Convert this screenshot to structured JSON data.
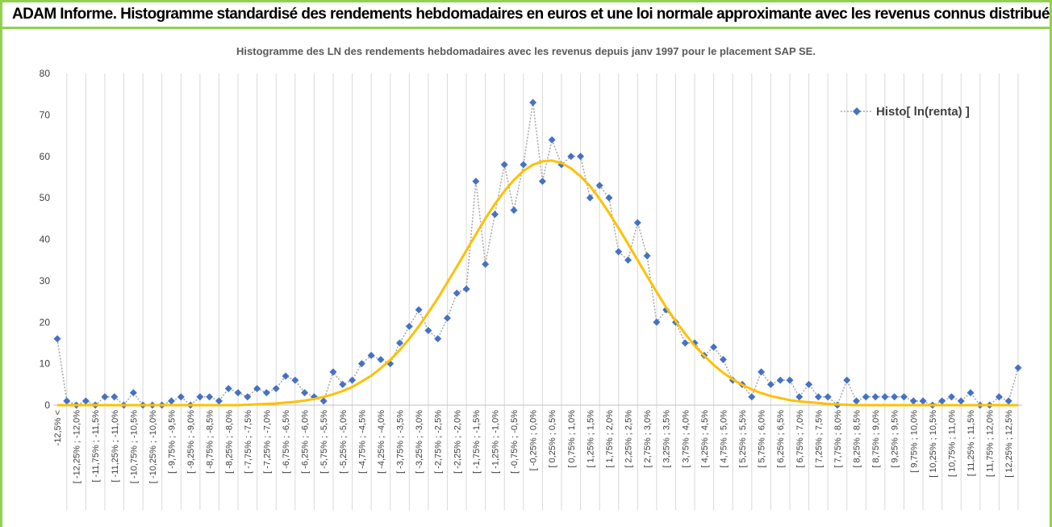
{
  "header": {
    "title": "ADAM Informe. Histogramme standardisé des rendements hebdomadaires en euros et une loi normale approximante avec les revenus connus distribués"
  },
  "chart_data": {
    "type": "line",
    "title": "Histogramme des LN des rendements hebdomadaires avec les revenus depuis janv 1997 pour le placement SAP SE.",
    "categories": [
      "-12,5% <",
      null,
      "[ -12,25% ; -12,0%",
      null,
      "[ -11,75% ; -11,5%",
      null,
      "[ -11,25% ; -11,0%",
      null,
      "[ -10,75% ; -10,5%",
      null,
      "[ -10,25% ; -10,0%",
      null,
      "[ -9,75% ; -9,5%",
      null,
      "[ -9,25% ; -9,0%",
      null,
      "[ -8,75% ; -8,5%",
      null,
      "[ -8,25% ; -8,0%",
      null,
      "[ -7,75% ; -7,5%",
      null,
      "[ -7,25% ; -7,0%",
      null,
      "[ -6,75% ; -6,5%",
      null,
      "[ -6,25% ; -6,0%",
      null,
      "[ -5,75% ; -5,5%",
      null,
      "[ -5,25% ; -5,0%",
      null,
      "[ -4,75% ; -4,5%",
      null,
      "[ -4,25% ; -4,0%",
      null,
      "[ -3,75% ; -3,5%",
      null,
      "[ -3,25% ; -3,0%",
      null,
      "[ -2,75% ; -2,5%",
      null,
      "[ -2,25% ; -2,0%",
      null,
      "[ -1,75% ; -1,5%",
      null,
      "[ -1,25% ; -1,0%",
      null,
      "[ -0,75% ; -0,5%",
      null,
      "[ -0,25% ; 0,0%",
      null,
      "[ 0,25% ; 0,5%",
      null,
      "[ 0,75% ; 1,0%",
      null,
      "[ 1,25% ; 1,5%",
      null,
      "[ 1,75% ; 2,0%",
      null,
      "[ 2,25% ; 2,5%",
      null,
      "[ 2,75% ; 3,0%",
      null,
      "[ 3,25% ; 3,5%",
      null,
      "[ 3,75% ; 4,0%",
      null,
      "[ 4,25% ; 4,5%",
      null,
      "[ 4,75% ; 5,0%",
      null,
      "[ 5,25% ; 5,5%",
      null,
      "[ 5,75% ; 6,0%",
      null,
      "[ 6,25% ; 6,5%",
      null,
      "[ 6,75% ; 7,0%",
      null,
      "[ 7,25% ; 7,5%",
      null,
      "[ 7,75% ; 8,0%",
      null,
      "[ 8,25% ; 8,5%",
      null,
      "[ 8,75% ; 9,0%",
      null,
      "[ 9,25% ; 9,5%",
      null,
      "[ 9,75% ; 10,0%",
      null,
      "[ 10,25% ; 10,5%",
      null,
      "[ 10,75% ; 11,0%",
      null,
      "[ 11,25% ; 11,5%",
      null,
      "[ 11,75% ; 12,0%",
      null,
      "[ 12,25% ; 12,5%",
      null
    ],
    "series": [
      {
        "name": "Histo[ ln(renta) ]",
        "color": "#4472c4",
        "line_color": "#a5a5a5",
        "values": [
          16,
          1,
          0,
          1,
          0,
          2,
          2,
          0,
          3,
          0,
          0,
          0,
          1,
          2,
          0,
          2,
          2,
          1,
          4,
          3,
          2,
          4,
          3,
          4,
          7,
          6,
          3,
          2,
          1,
          8,
          5,
          6,
          10,
          12,
          11,
          10,
          15,
          19,
          23,
          18,
          16,
          21,
          27,
          28,
          54,
          34,
          46,
          58,
          47,
          58,
          73,
          54,
          64,
          58,
          60,
          60,
          50,
          53,
          50,
          37,
          35,
          44,
          36,
          20,
          23,
          20,
          15,
          15,
          12,
          14,
          11,
          6,
          5,
          2,
          8,
          5,
          6,
          6,
          2,
          5,
          2,
          2,
          0,
          6,
          1,
          2,
          2,
          2,
          2,
          2,
          1,
          1,
          0,
          1,
          2,
          1,
          3,
          0,
          0,
          2,
          1,
          9
        ]
      },
      {
        "color": "#ffc000",
        "values": [
          0,
          0,
          0,
          0,
          0,
          0,
          0,
          0,
          0,
          0,
          0,
          0,
          0,
          0,
          0,
          0,
          0,
          0,
          0,
          0,
          0.1,
          0.2,
          0.3,
          0.4,
          0.6,
          0.8,
          1.1,
          1.5,
          2.0,
          2.6,
          3.4,
          4.4,
          5.7,
          7.1,
          8.9,
          10.9,
          13.3,
          16.0,
          19.0,
          22.3,
          25.8,
          29.6,
          33.4,
          37.3,
          41.2,
          45.0,
          48.5,
          51.6,
          54.3,
          56.5,
          58.0,
          58.8,
          59.0,
          58.4,
          57.1,
          55.2,
          52.8,
          49.8,
          46.4,
          42.7,
          38.9,
          35.0,
          31.1,
          27.3,
          23.6,
          20.3,
          17.2,
          14.3,
          11.9,
          9.7,
          7.8,
          6.2,
          4.9,
          3.8,
          2.9,
          2.2,
          1.7,
          1.2,
          0.9,
          0.7,
          0.5,
          0.3,
          0.2,
          0.1,
          0,
          0,
          0,
          0,
          0,
          0,
          0,
          0,
          0,
          0,
          0,
          0,
          0,
          0,
          0,
          0,
          0,
          0
        ]
      }
    ],
    "ylim": [
      0,
      80
    ],
    "yticks": [
      0,
      10,
      20,
      30,
      40,
      50,
      60,
      70,
      80
    ],
    "grid": "x",
    "legend": "top-right"
  }
}
